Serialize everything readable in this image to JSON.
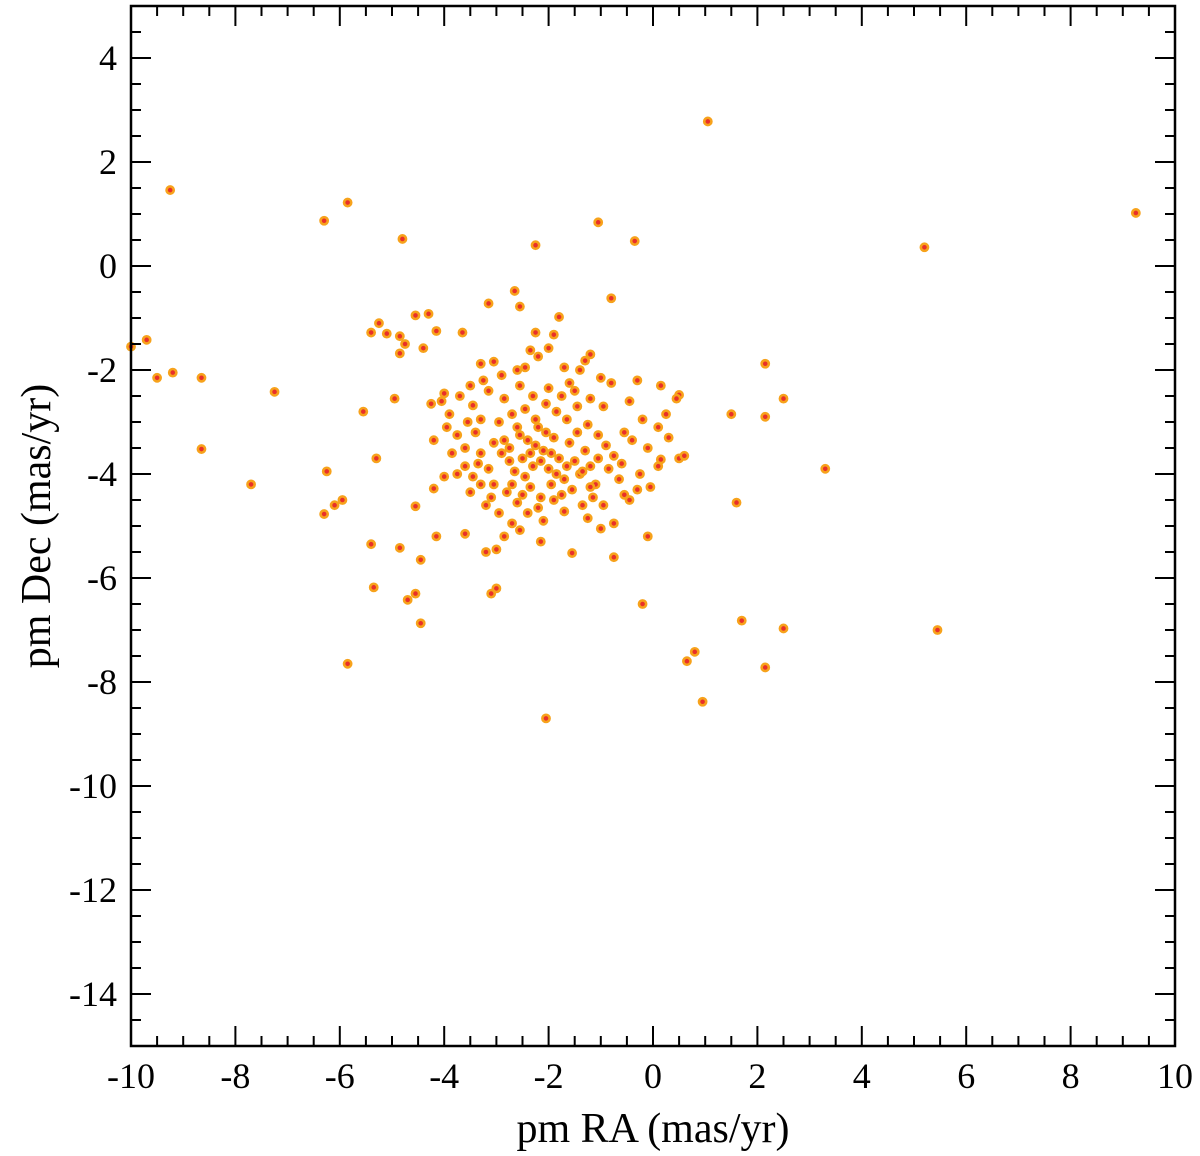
{
  "chart_data": {
    "type": "scatter",
    "title": "",
    "xlabel": "pm RA (mas/yr)",
    "ylabel": "pm  Dec (mas/yr)",
    "xlim": [
      -10,
      10
    ],
    "ylim": [
      -15,
      5
    ],
    "x_ticks": [
      -10,
      -8,
      -6,
      -4,
      -2,
      0,
      2,
      4,
      6,
      8,
      10
    ],
    "y_ticks": [
      -14,
      -12,
      -10,
      -8,
      -6,
      -4,
      -2,
      0,
      2,
      4
    ],
    "x_tick_labels": [
      "-10",
      "-8",
      "-6",
      "-4",
      "-2",
      "0",
      "2",
      "4",
      "6",
      "8",
      "10"
    ],
    "y_tick_labels": [
      "-14",
      "-12",
      "-10",
      "-8",
      "-6",
      "-4",
      "-2",
      "0",
      "2",
      "4"
    ],
    "grid": false,
    "legend": "none",
    "marker_fill": "#e8302a",
    "marker_edge": "#f7a21b",
    "series": [
      {
        "points": [
          [
            1.05,
            2.78
          ],
          [
            9.25,
            1.02
          ],
          [
            5.2,
            0.36
          ],
          [
            5.45,
            -7.0
          ],
          [
            -9.25,
            1.46
          ],
          [
            -5.85,
            1.22
          ],
          [
            -6.3,
            0.87
          ],
          [
            -4.8,
            0.52
          ],
          [
            -2.25,
            0.4
          ],
          [
            -1.05,
            0.84
          ],
          [
            -0.35,
            0.48
          ],
          [
            -10.0,
            -1.55
          ],
          [
            -9.7,
            -1.42
          ],
          [
            -9.5,
            -2.15
          ],
          [
            -9.2,
            -2.05
          ],
          [
            -8.65,
            -2.15
          ],
          [
            -8.65,
            -3.52
          ],
          [
            -7.7,
            -4.2
          ],
          [
            -7.25,
            -2.42
          ],
          [
            -6.25,
            -3.95
          ],
          [
            -6.3,
            -4.77
          ],
          [
            -6.1,
            -4.6
          ],
          [
            -5.95,
            -4.5
          ],
          [
            -5.55,
            -2.8
          ],
          [
            -5.4,
            -1.28
          ],
          [
            -5.25,
            -1.1
          ],
          [
            -5.1,
            -1.3
          ],
          [
            -4.95,
            -2.55
          ],
          [
            -4.85,
            -1.35
          ],
          [
            -4.85,
            -1.68
          ],
          [
            -4.75,
            -1.5
          ],
          [
            -4.55,
            -0.95
          ],
          [
            -4.3,
            -0.92
          ],
          [
            -4.15,
            -1.25
          ],
          [
            -4.4,
            -1.58
          ],
          [
            -3.65,
            -1.28
          ],
          [
            -3.15,
            -0.72
          ],
          [
            -2.65,
            -0.48
          ],
          [
            -2.55,
            -0.78
          ],
          [
            -1.8,
            -0.98
          ],
          [
            -0.8,
            -0.62
          ],
          [
            -5.3,
            -3.7
          ],
          [
            -5.4,
            -5.35
          ],
          [
            -5.35,
            -6.18
          ],
          [
            -4.85,
            -5.42
          ],
          [
            -4.7,
            -6.42
          ],
          [
            -4.55,
            -6.3
          ],
          [
            -4.45,
            -6.87
          ],
          [
            -4.45,
            -5.65
          ],
          [
            -4.15,
            -5.2
          ],
          [
            -4.55,
            -4.62
          ],
          [
            -5.85,
            -7.65
          ],
          [
            -3.1,
            -6.3
          ],
          [
            -3.0,
            -6.2
          ],
          [
            -2.05,
            -8.7
          ],
          [
            -0.2,
            -6.5
          ],
          [
            0.65,
            -7.6
          ],
          [
            0.8,
            -7.42
          ],
          [
            0.95,
            -8.38
          ],
          [
            1.7,
            -6.82
          ],
          [
            2.15,
            -7.72
          ],
          [
            2.5,
            -6.97
          ],
          [
            3.3,
            -3.9
          ],
          [
            1.6,
            -4.55
          ],
          [
            2.15,
            -1.88
          ],
          [
            2.15,
            -2.9
          ],
          [
            2.5,
            -2.55
          ],
          [
            1.5,
            -2.85
          ],
          [
            0.5,
            -2.48
          ],
          [
            0.45,
            -2.55
          ],
          [
            0.5,
            -3.7
          ],
          [
            0.15,
            -3.72
          ],
          [
            -0.05,
            -4.25
          ],
          [
            -0.3,
            -4.3
          ],
          [
            -0.45,
            -4.5
          ],
          [
            -0.55,
            -3.2
          ],
          [
            -0.1,
            -5.2
          ],
          [
            -0.75,
            -5.6
          ],
          [
            -1.55,
            -5.52
          ],
          [
            -2.15,
            -5.3
          ],
          [
            -2.25,
            -1.28
          ],
          [
            -1.9,
            -1.32
          ],
          [
            -1.2,
            -1.7
          ],
          [
            -1.3,
            -1.82
          ],
          [
            -2.0,
            -1.58
          ],
          [
            -2.35,
            -1.62
          ],
          [
            -2.2,
            -1.74
          ],
          [
            -3.05,
            -1.84
          ],
          [
            -3.3,
            -1.88
          ],
          [
            -3.45,
            -2.68
          ],
          [
            -3.7,
            -2.5
          ],
          [
            -4.25,
            -2.65
          ],
          [
            -4.0,
            -2.45
          ],
          [
            -4.2,
            -3.35
          ],
          [
            -4.2,
            -4.28
          ],
          [
            -4.0,
            -4.05
          ],
          [
            -3.75,
            -4.0
          ],
          [
            -3.5,
            -4.35
          ],
          [
            -3.6,
            -5.15
          ],
          [
            -3.2,
            -5.5
          ],
          [
            -3.0,
            -5.45
          ],
          [
            -2.85,
            -5.2
          ],
          [
            -2.55,
            -5.08
          ],
          [
            -2.1,
            -4.9
          ],
          [
            -1.7,
            -4.72
          ],
          [
            -1.25,
            -4.85
          ],
          [
            -1.0,
            -5.05
          ],
          [
            -0.75,
            -4.95
          ],
          [
            -0.8,
            -2.25
          ],
          [
            -0.3,
            -2.2
          ],
          [
            0.15,
            -2.3
          ],
          [
            -0.45,
            -2.6
          ],
          [
            -1.4,
            -2.0
          ],
          [
            -1.0,
            -2.15
          ],
          [
            -1.6,
            -2.25
          ],
          [
            -2.9,
            -2.1
          ],
          [
            -2.6,
            -2.0
          ],
          [
            -3.3,
            -2.95
          ],
          [
            -3.4,
            -3.2
          ],
          [
            -3.3,
            -3.6
          ],
          [
            -3.15,
            -3.9
          ],
          [
            -3.05,
            -4.2
          ],
          [
            -2.85,
            -3.35
          ],
          [
            -2.75,
            -3.5
          ],
          [
            -2.6,
            -3.1
          ],
          [
            -2.5,
            -3.7
          ],
          [
            -2.4,
            -3.35
          ],
          [
            -2.3,
            -3.85
          ],
          [
            -2.2,
            -3.1
          ],
          [
            -2.1,
            -3.55
          ],
          [
            -2.0,
            -3.9
          ],
          [
            -1.9,
            -3.3
          ],
          [
            -1.8,
            -3.7
          ],
          [
            -1.7,
            -4.1
          ],
          [
            -1.6,
            -3.4
          ],
          [
            -1.5,
            -3.75
          ],
          [
            -1.4,
            -4.0
          ],
          [
            -1.3,
            -3.55
          ],
          [
            -1.2,
            -3.85
          ],
          [
            -1.1,
            -4.2
          ],
          [
            -2.95,
            -3.0
          ],
          [
            -2.7,
            -2.85
          ],
          [
            -2.45,
            -2.75
          ],
          [
            -2.25,
            -2.95
          ],
          [
            -2.05,
            -2.65
          ],
          [
            -1.85,
            -2.8
          ],
          [
            -1.65,
            -2.95
          ],
          [
            -1.45,
            -2.7
          ],
          [
            -1.25,
            -3.05
          ],
          [
            -1.05,
            -3.25
          ],
          [
            -0.9,
            -3.45
          ],
          [
            -0.75,
            -3.65
          ],
          [
            -0.6,
            -3.8
          ],
          [
            -0.4,
            -3.35
          ],
          [
            -0.2,
            -2.95
          ],
          [
            -0.1,
            -3.5
          ],
          [
            0.1,
            -3.1
          ],
          [
            0.25,
            -2.85
          ],
          [
            -3.55,
            -3.0
          ],
          [
            -3.75,
            -3.25
          ],
          [
            -3.9,
            -2.85
          ],
          [
            -3.6,
            -3.85
          ],
          [
            -3.45,
            -4.05
          ],
          [
            -2.8,
            -4.35
          ],
          [
            -2.6,
            -4.55
          ],
          [
            -2.35,
            -4.25
          ],
          [
            -2.15,
            -4.45
          ],
          [
            -1.95,
            -4.2
          ],
          [
            -1.75,
            -4.4
          ],
          [
            -1.55,
            -4.3
          ],
          [
            -1.35,
            -4.6
          ],
          [
            -1.15,
            -4.45
          ],
          [
            -0.95,
            -4.6
          ],
          [
            -3.2,
            -4.6
          ],
          [
            -2.95,
            -4.75
          ],
          [
            -2.7,
            -4.95
          ],
          [
            -2.4,
            -4.75
          ],
          [
            -3.15,
            -2.4
          ],
          [
            -2.85,
            -2.55
          ],
          [
            -2.55,
            -2.3
          ],
          [
            -2.3,
            -2.5
          ],
          [
            -2.0,
            -2.35
          ],
          [
            -1.75,
            -2.5
          ],
          [
            -1.5,
            -2.4
          ],
          [
            -1.2,
            -2.55
          ],
          [
            -0.95,
            -2.7
          ],
          [
            -2.65,
            -3.95
          ],
          [
            -2.45,
            -4.05
          ],
          [
            -2.15,
            -3.75
          ],
          [
            -1.95,
            -3.6
          ],
          [
            -1.85,
            -4.0
          ],
          [
            -1.65,
            -3.85
          ],
          [
            -2.75,
            -3.75
          ],
          [
            -2.9,
            -3.6
          ],
          [
            -3.05,
            -3.4
          ],
          [
            -3.6,
            -3.5
          ],
          [
            -3.35,
            -3.8
          ],
          [
            -2.55,
            -3.25
          ],
          [
            -2.35,
            -3.6
          ],
          [
            -2.25,
            -3.45
          ],
          [
            -2.05,
            -3.2
          ],
          [
            -1.45,
            -3.2
          ],
          [
            -1.35,
            -3.95
          ],
          [
            -1.05,
            -3.7
          ],
          [
            -0.85,
            -3.9
          ],
          [
            -0.65,
            -4.1
          ],
          [
            -0.55,
            -4.4
          ],
          [
            -3.85,
            -3.6
          ],
          [
            -3.95,
            -3.1
          ],
          [
            -4.05,
            -2.6
          ],
          [
            -3.5,
            -2.3
          ],
          [
            -1.7,
            -1.95
          ],
          [
            -2.45,
            -1.95
          ],
          [
            -3.25,
            -2.2
          ],
          [
            0.6,
            -3.65
          ],
          [
            0.3,
            -3.3
          ],
          [
            0.1,
            -3.85
          ],
          [
            -0.25,
            -4.0
          ],
          [
            -2.7,
            -4.2
          ],
          [
            -2.5,
            -4.4
          ],
          [
            -3.1,
            -4.45
          ],
          [
            -3.3,
            -4.2
          ],
          [
            -1.2,
            -4.25
          ],
          [
            -2.2,
            -4.65
          ],
          [
            -1.9,
            -4.5
          ]
        ]
      }
    ]
  }
}
